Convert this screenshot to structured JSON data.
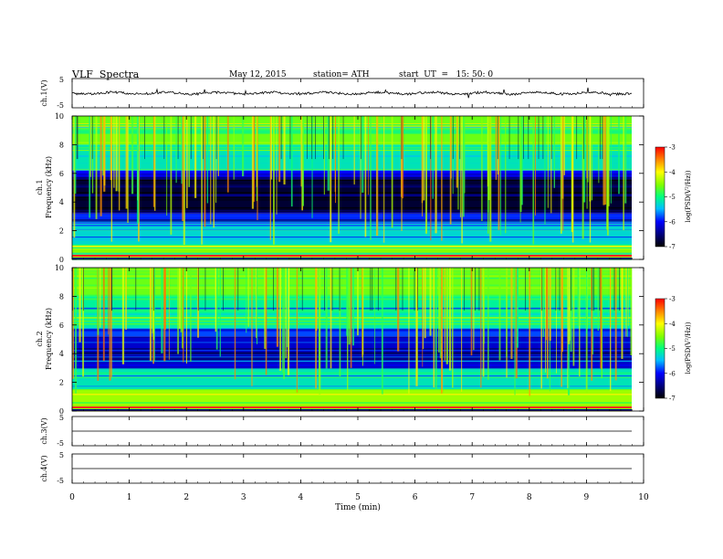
{
  "header": {
    "title": "VLF  Spectra",
    "date": "May 12, 2015",
    "station": "station= ATH",
    "start": "start  UT  =   15: 50: 0"
  },
  "chart_data": [
    {
      "type": "line",
      "panel": "ch1-waveform",
      "ylabel": "ch.1(V)",
      "ylim": [
        -5,
        5
      ],
      "yticks": [
        "5",
        "-5"
      ],
      "xlim": [
        0,
        10
      ],
      "x_span_min": [
        0,
        9.8
      ],
      "series": [
        {
          "values_description_free": true,
          "mean": 0.0,
          "amplitude": 1.0
        }
      ]
    },
    {
      "type": "heatmap",
      "panel": "ch1-spectrogram",
      "ylabel": "ch.1\nFrequency  (kHz)",
      "ylim": [
        0,
        10
      ],
      "yticks": [
        "0",
        "2",
        "4",
        "6",
        "8",
        "10"
      ],
      "xlim": [
        0,
        10
      ],
      "colorbar": {
        "label": "log(PSD(V²/Hz))",
        "range": [
          -7,
          -3
        ],
        "ticks": [
          "-3",
          "-4",
          "-5",
          "-6",
          "-7"
        ]
      },
      "bands_khz": [
        {
          "from": 0,
          "to": 1,
          "log_psd": -4.5
        },
        {
          "from": 1,
          "to": 2.5,
          "log_psd": -5.3
        },
        {
          "from": 2.5,
          "to": 3.2,
          "log_psd": -5.9
        },
        {
          "from": 3.2,
          "to": 5.6,
          "log_psd": -6.8
        },
        {
          "from": 5.6,
          "to": 6.2,
          "log_psd": -6.0
        },
        {
          "from": 6.2,
          "to": 8.0,
          "log_psd": -5.2
        },
        {
          "from": 8.0,
          "to": 10,
          "log_psd": -4.6
        }
      ]
    },
    {
      "type": "heatmap",
      "panel": "ch2-spectrogram",
      "ylabel": "ch.2\nFrequency  (kHz)",
      "ylim": [
        0,
        10
      ],
      "yticks": [
        "0",
        "2",
        "4",
        "6",
        "8",
        "10"
      ],
      "xlim": [
        0,
        10
      ],
      "colorbar": {
        "label": "log(PSD(V²/Hz))",
        "range": [
          -7,
          -3
        ],
        "ticks": [
          "-3",
          "-4",
          "-5",
          "-6",
          "-7"
        ]
      },
      "bands_khz": [
        {
          "from": 0,
          "to": 1.5,
          "log_psd": -4.4
        },
        {
          "from": 1.5,
          "to": 3.0,
          "log_psd": -5.2
        },
        {
          "from": 3.0,
          "to": 5.2,
          "log_psd": -6.2
        },
        {
          "from": 5.2,
          "to": 5.8,
          "log_psd": -5.8
        },
        {
          "from": 5.8,
          "to": 8.0,
          "log_psd": -5.1
        },
        {
          "from": 8.0,
          "to": 10,
          "log_psd": -4.6
        }
      ]
    },
    {
      "type": "line",
      "panel": "ch3-waveform",
      "ylabel": "ch.3(V)",
      "ylim": [
        -5,
        5
      ],
      "yticks": [
        "5",
        "-5"
      ],
      "xlim": [
        0,
        10
      ],
      "series": [
        {
          "values": [
            0,
            0
          ]
        }
      ]
    },
    {
      "type": "line",
      "panel": "ch4-waveform",
      "ylabel": "ch.4(V)",
      "ylim": [
        -5,
        5
      ],
      "yticks": [
        "5",
        "-5"
      ],
      "xlim": [
        0,
        10
      ],
      "xlabel": "Time  (min)",
      "xticks": [
        "0",
        "1",
        "2",
        "3",
        "4",
        "5",
        "6",
        "7",
        "8",
        "9",
        "10"
      ],
      "series": [
        {
          "values": [
            0,
            0
          ]
        }
      ]
    }
  ]
}
